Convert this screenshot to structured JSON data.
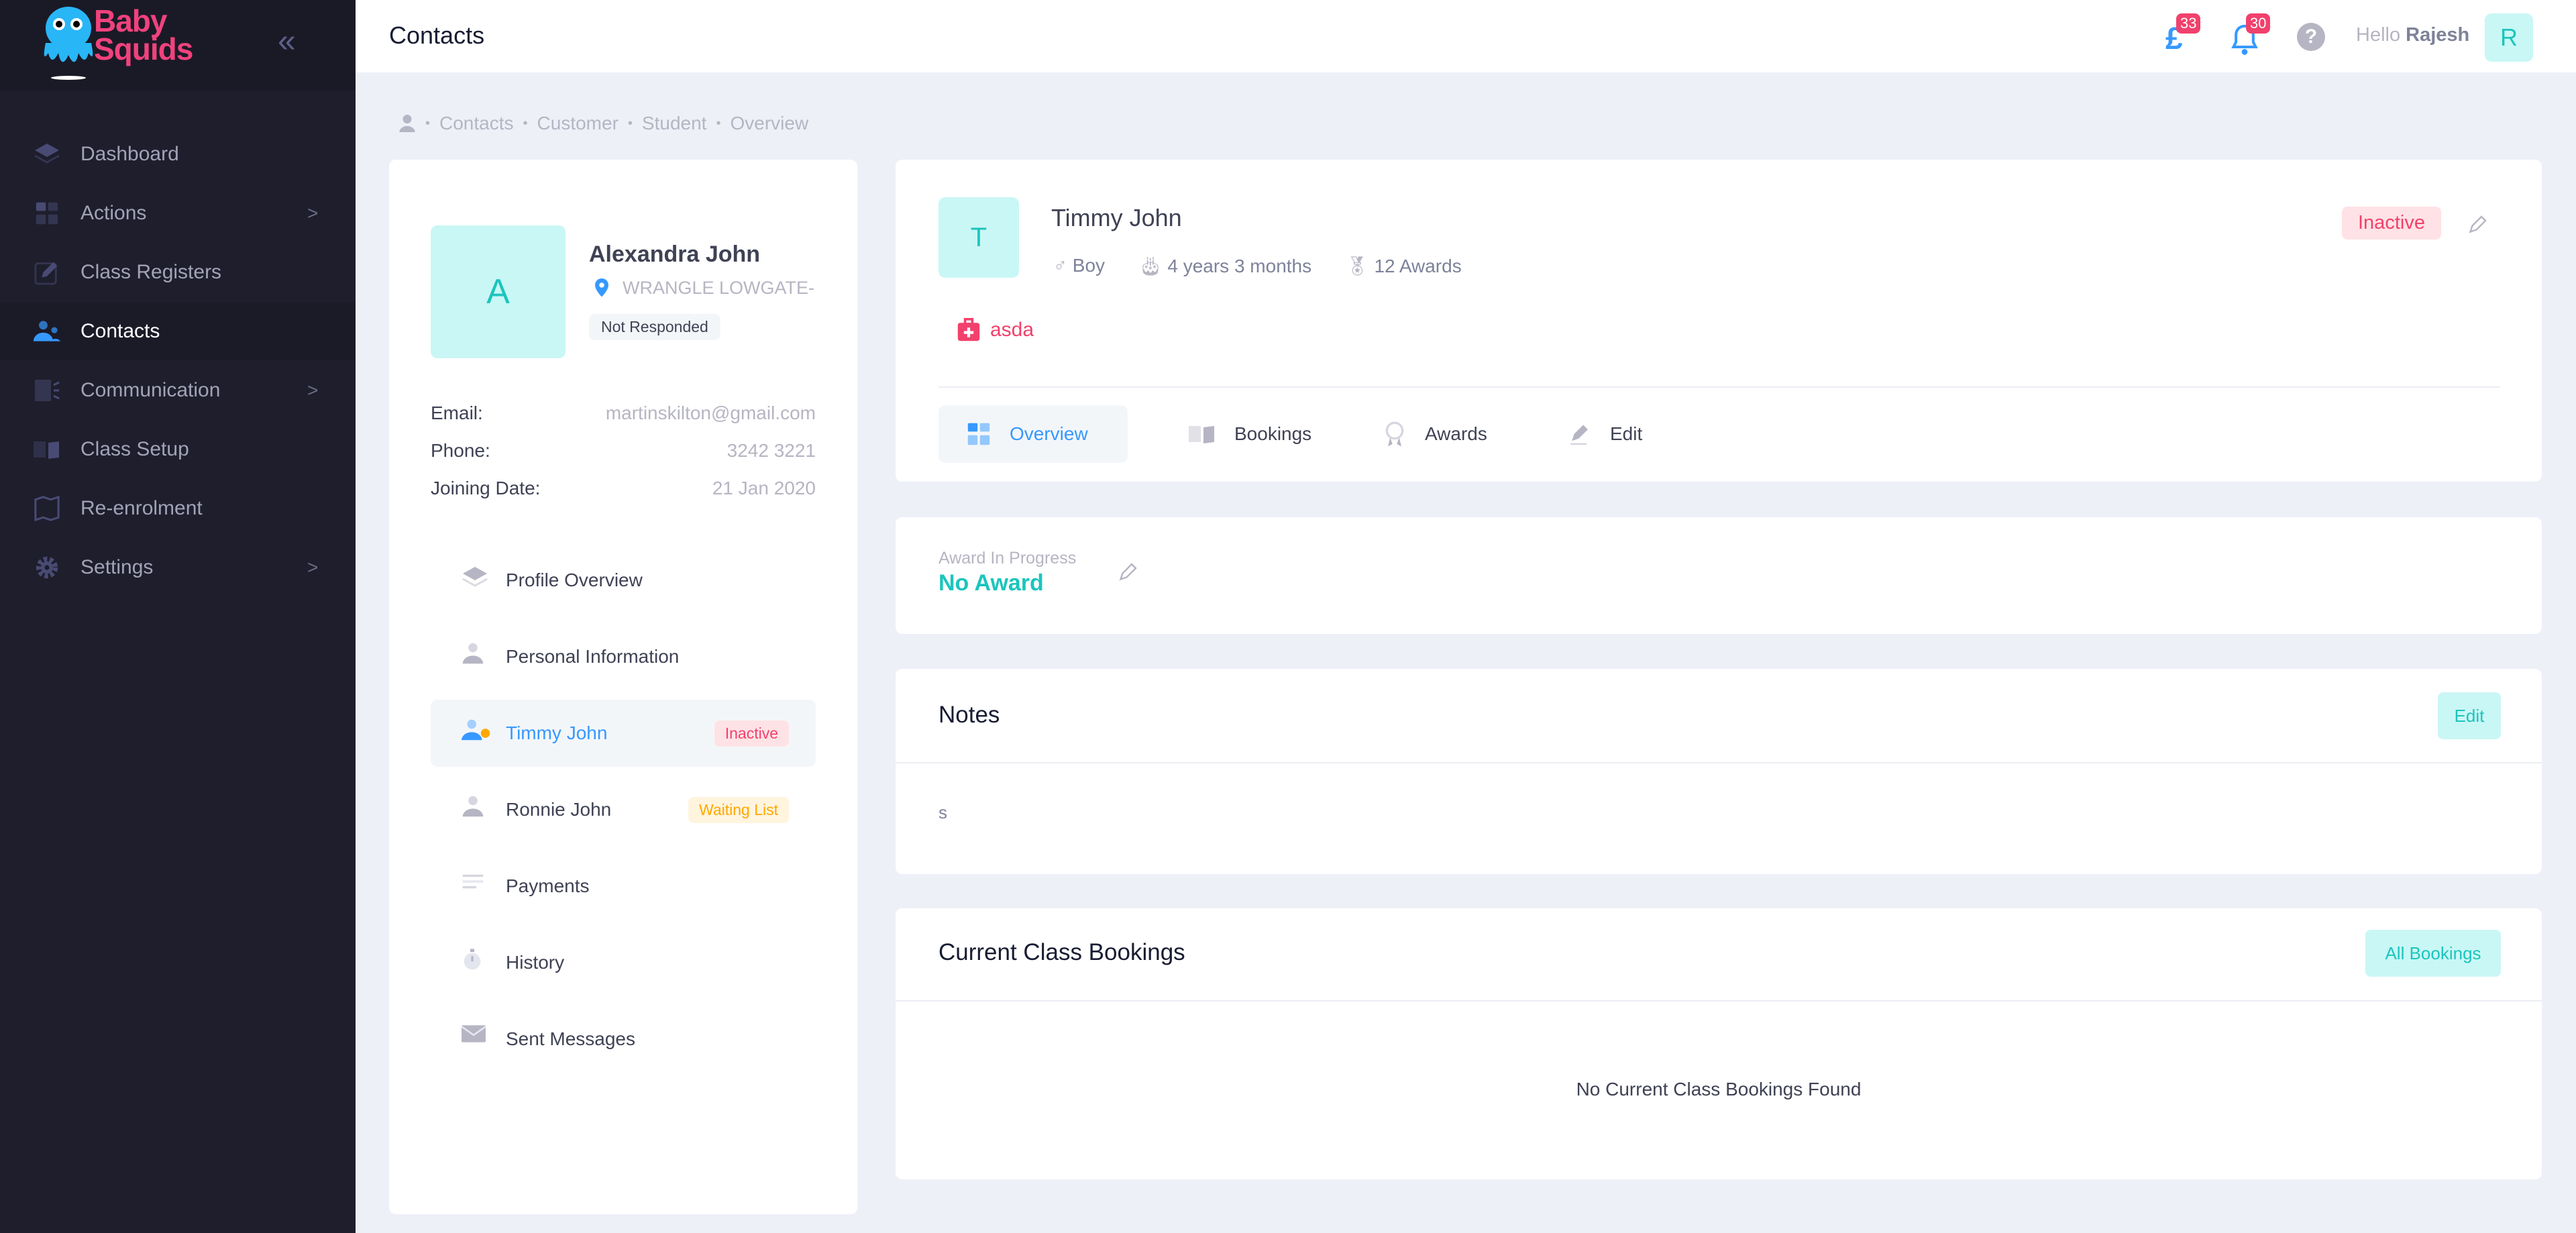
{
  "brand": {
    "name": "Baby Squids",
    "line1": "Baby",
    "line2": "Squids"
  },
  "colors": {
    "sidebar": "#1e1e2d",
    "accent": "#3699ff",
    "teal": "#1bc5bd",
    "danger": "#f1416c",
    "warning": "#ffa800"
  },
  "sidebar": {
    "items": [
      {
        "label": "Dashboard",
        "icon": "layers-icon",
        "chevron": false
      },
      {
        "label": "Actions",
        "icon": "grid-icon",
        "chevron": true
      },
      {
        "label": "Class Registers",
        "icon": "edit-icon",
        "chevron": false
      },
      {
        "label": "Contacts",
        "icon": "users-icon",
        "chevron": false,
        "active": true
      },
      {
        "label": "Communication",
        "icon": "broadcast-icon",
        "chevron": true
      },
      {
        "label": "Class Setup",
        "icon": "book-icon",
        "chevron": false
      },
      {
        "label": "Re-enrolment",
        "icon": "map-icon",
        "chevron": false
      },
      {
        "label": "Settings",
        "icon": "gear-icon",
        "chevron": true
      }
    ],
    "chevron": ">"
  },
  "header": {
    "title": "Contacts",
    "payments_count": "33",
    "notifications_count": "30",
    "pound": "£",
    "help": "?",
    "greeting": "Hello",
    "user": "Rajesh",
    "avatar": "R"
  },
  "breadcrumb": [
    "Contacts",
    "Customer",
    "Student",
    "Overview"
  ],
  "parent": {
    "initial": "A",
    "name": "Alexandra John",
    "location": "WRANGLE LOWGATE-",
    "status": "Not Responded",
    "fields": [
      {
        "label": "Email:",
        "value": "martinskilton@gmail.com"
      },
      {
        "label": "Phone:",
        "value": "3242 3221"
      },
      {
        "label": "Joining Date:",
        "value": "21 Jan 2020"
      }
    ]
  },
  "menu": [
    {
      "label": "Profile Overview",
      "icon": "layers-icon"
    },
    {
      "label": "Personal Information",
      "icon": "user-icon"
    },
    {
      "label": "Timmy John",
      "icon": "user-active-icon",
      "badge": "Inactive",
      "active": true
    },
    {
      "label": "Ronnie John",
      "icon": "user-icon",
      "badge": "Waiting List"
    },
    {
      "label": "Payments",
      "icon": "list-icon"
    },
    {
      "label": "History",
      "icon": "stopwatch-icon"
    },
    {
      "label": "Sent Messages",
      "icon": "mail-icon"
    }
  ],
  "child": {
    "initial": "T",
    "name": "Timmy John",
    "gender": "Boy",
    "age": "4 years 3 months",
    "awards": "12 Awards",
    "status": "Inactive",
    "medical": "asda",
    "tabs": [
      "Overview",
      "Bookings",
      "Awards",
      "Edit"
    ],
    "active_tab": "Overview"
  },
  "award": {
    "label": "Award In Progress",
    "value": "No Award"
  },
  "notes": {
    "title": "Notes",
    "edit": "Edit",
    "text": "s"
  },
  "bookings": {
    "title": "Current Class Bookings",
    "button": "All Bookings",
    "empty": "No Current Class Bookings Found"
  }
}
